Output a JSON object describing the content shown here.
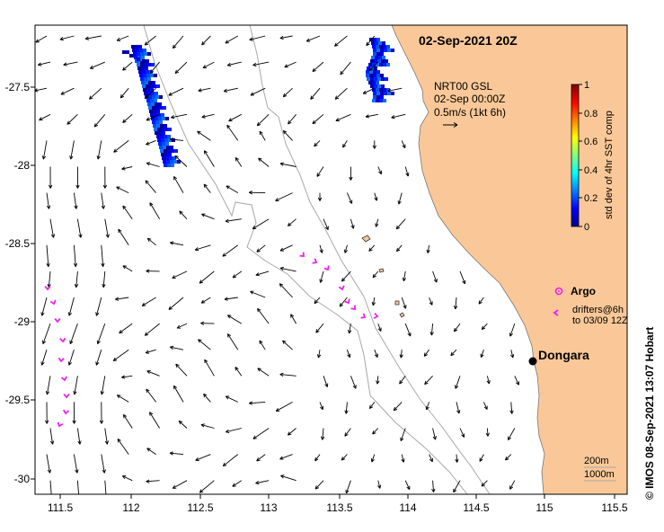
{
  "title": "02-Sep-2021 20Z",
  "product": {
    "line1": "NRT00 GSL",
    "line2": "02-Sep 00:00Z",
    "line3": "0.5m/s (1kt 6h)"
  },
  "colorbar": {
    "label": "std dev of 4hr SST comp",
    "ticks": [
      "0",
      "0.2",
      "0.4",
      "0.6",
      "0.8",
      "1"
    ]
  },
  "legend": {
    "argo": "Argo",
    "drifters_line1": "drifters@6h",
    "drifters_line2": "to 03/09 12Z"
  },
  "place": {
    "name": "Dongara"
  },
  "isobaths": {
    "a": "200m",
    "b": "1000m"
  },
  "credit": "© IMOS 08-Sep-2021 13:07 Hobart",
  "axes": {
    "x_ticks": [
      "111.5",
      "112",
      "112.5",
      "113",
      "113.5",
      "114",
      "114.5",
      "115",
      "115.5"
    ],
    "y_ticks": [
      "-27.5",
      "-28",
      "-28.5",
      "-29",
      "-29.5",
      "-30"
    ],
    "x_range": [
      111.3,
      115.6
    ],
    "y_range": [
      -30.1,
      -27.1
    ]
  },
  "colors": {
    "land": "#fac898",
    "drifter": "#ee22ee",
    "isobath": "#a8a8a8",
    "arrow": "#000000"
  }
}
